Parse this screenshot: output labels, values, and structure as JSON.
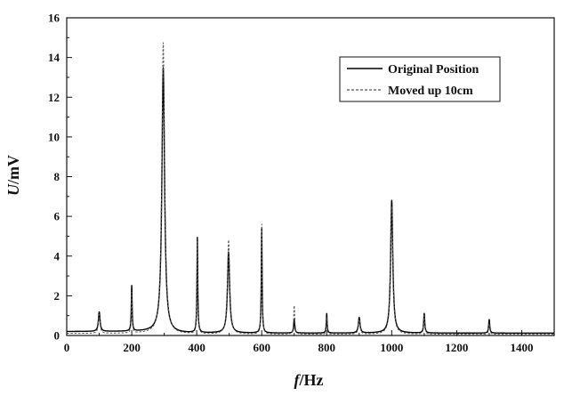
{
  "chart_data": {
    "type": "line",
    "title": "",
    "xlabel": "f/Hz",
    "xlabel_italic": "f",
    "xlabel_rest": "/Hz",
    "ylabel": "U/mV",
    "ylabel_italic": "U",
    "ylabel_rest": "/mV",
    "xlim": [
      0,
      1500
    ],
    "ylim": [
      0,
      16
    ],
    "xticks": [
      0,
      200,
      400,
      600,
      800,
      1000,
      1200,
      1400
    ],
    "yticks": [
      0,
      2,
      4,
      6,
      8,
      10,
      12,
      14,
      16
    ],
    "grid": false,
    "legend_position": "top-right",
    "series": [
      {
        "name": "Original Position",
        "style": "solid",
        "color": "#000000",
        "baseline": 0.2,
        "peaks": [
          [
            100,
            1.1,
            3
          ],
          [
            200,
            2.4,
            1.5
          ],
          [
            297,
            13.4,
            5
          ],
          [
            402,
            4.9,
            1.5
          ],
          [
            498,
            4.2,
            4
          ],
          [
            600,
            5.4,
            1.5
          ],
          [
            700,
            0.8,
            2
          ],
          [
            800,
            1.1,
            1.5
          ],
          [
            900,
            0.9,
            3
          ],
          [
            1000,
            6.8,
            4
          ],
          [
            1100,
            1.1,
            2
          ],
          [
            1300,
            0.8,
            2
          ]
        ]
      },
      {
        "name": "Moved up 10cm",
        "style": "dashed",
        "color": "#555555",
        "baseline": 0.1,
        "peaks": [
          [
            100,
            1.0,
            3
          ],
          [
            200,
            2.1,
            1.5
          ],
          [
            297,
            14.7,
            5
          ],
          [
            402,
            4.7,
            1.5
          ],
          [
            498,
            4.8,
            4
          ],
          [
            600,
            5.6,
            1.5
          ],
          [
            700,
            1.5,
            2
          ],
          [
            800,
            0.9,
            1.5
          ],
          [
            900,
            0.8,
            3
          ],
          [
            1000,
            6.5,
            4
          ],
          [
            1100,
            1.0,
            2
          ],
          [
            1300,
            0.6,
            2
          ]
        ]
      }
    ]
  }
}
